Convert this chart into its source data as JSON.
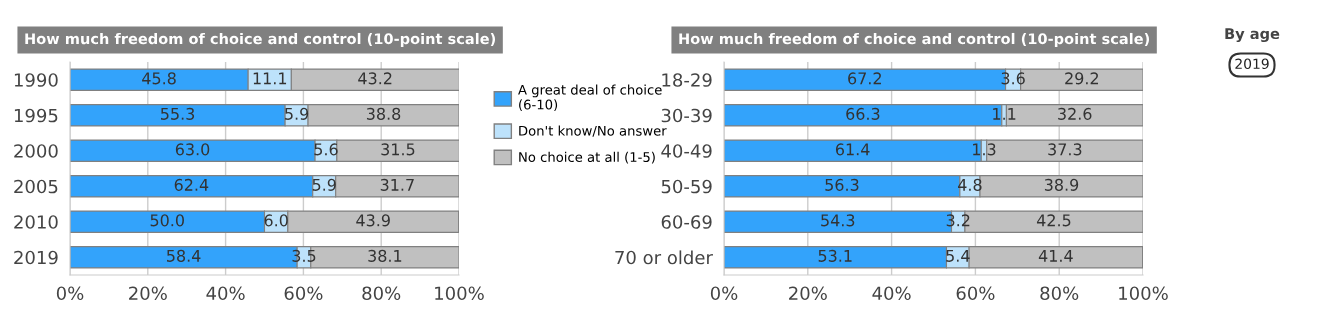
{
  "chart_data": [
    {
      "type": "bar",
      "orientation": "horizontal",
      "stacked": true,
      "title": "How much freedom of choice and control (10-point scale)",
      "categories": [
        "1990",
        "1995",
        "2000",
        "2005",
        "2010",
        "2019"
      ],
      "series": [
        {
          "name": "A great deal of choice\n(6-10)",
          "color": "#33a3fb",
          "values": [
            45.8,
            55.3,
            63.0,
            62.4,
            50.0,
            58.4
          ],
          "value_labels": [
            "45.8",
            "55.3",
            "63.0",
            "62.4",
            "50.0",
            "58.4"
          ]
        },
        {
          "name": "Don't know/No answer",
          "color": "#bde2fb",
          "values": [
            11.1,
            5.9,
            5.6,
            5.9,
            6.0,
            3.5
          ],
          "value_labels": [
            "11.1",
            "5.9",
            "5.6",
            "5.9",
            "6.0",
            "3.5"
          ]
        },
        {
          "name": "No choice at all (1-5)",
          "color": "#c0c0c0",
          "values": [
            43.2,
            38.8,
            31.5,
            31.7,
            43.9,
            38.1
          ],
          "value_labels": [
            "43.2",
            "38.8",
            "31.5",
            "31.7",
            "43.9",
            "38.1"
          ]
        }
      ],
      "xlim": [
        0,
        100
      ],
      "xticks": [
        {
          "value": 0,
          "label": "0%"
        },
        {
          "value": 20,
          "label": "20%"
        },
        {
          "value": 40,
          "label": "40%"
        },
        {
          "value": 60,
          "label": "60%"
        },
        {
          "value": 80,
          "label": "80%"
        },
        {
          "value": 100,
          "label": "100%"
        }
      ],
      "grid": "x",
      "legend": "right"
    },
    {
      "type": "bar",
      "orientation": "horizontal",
      "stacked": true,
      "title": "How much freedom of choice and control (10-point scale)",
      "categories": [
        "18-29",
        "30-39",
        "40-49",
        "50-59",
        "60-69",
        "70 or older"
      ],
      "series": [
        {
          "color": "#33a3fb",
          "values": [
            67.2,
            66.3,
            61.4,
            56.3,
            54.3,
            53.1
          ],
          "value_labels": [
            "67.2",
            "66.3",
            "61.4",
            "56.3",
            "54.3",
            "53.1"
          ]
        },
        {
          "color": "#bde2fb",
          "values": [
            3.6,
            1.1,
            1.3,
            4.8,
            3.2,
            5.4
          ],
          "value_labels": [
            "3.6",
            "1.1",
            "1.3",
            "4.8",
            "3.2",
            "5.4"
          ]
        },
        {
          "color": "#c0c0c0",
          "values": [
            29.2,
            32.6,
            37.3,
            38.9,
            42.5,
            41.4
          ],
          "value_labels": [
            "29.2",
            "32.6",
            "37.3",
            "38.9",
            "42.5",
            "41.4"
          ]
        }
      ],
      "xlim": [
        0,
        100
      ],
      "xticks": [
        {
          "value": 0,
          "label": "0%"
        },
        {
          "value": 20,
          "label": "20%"
        },
        {
          "value": 40,
          "label": "40%"
        },
        {
          "value": 60,
          "label": "60%"
        },
        {
          "value": 80,
          "label": "80%"
        },
        {
          "value": 100,
          "label": "100%"
        }
      ],
      "grid": "x",
      "annotations": [
        "By age",
        "2019"
      ]
    }
  ]
}
